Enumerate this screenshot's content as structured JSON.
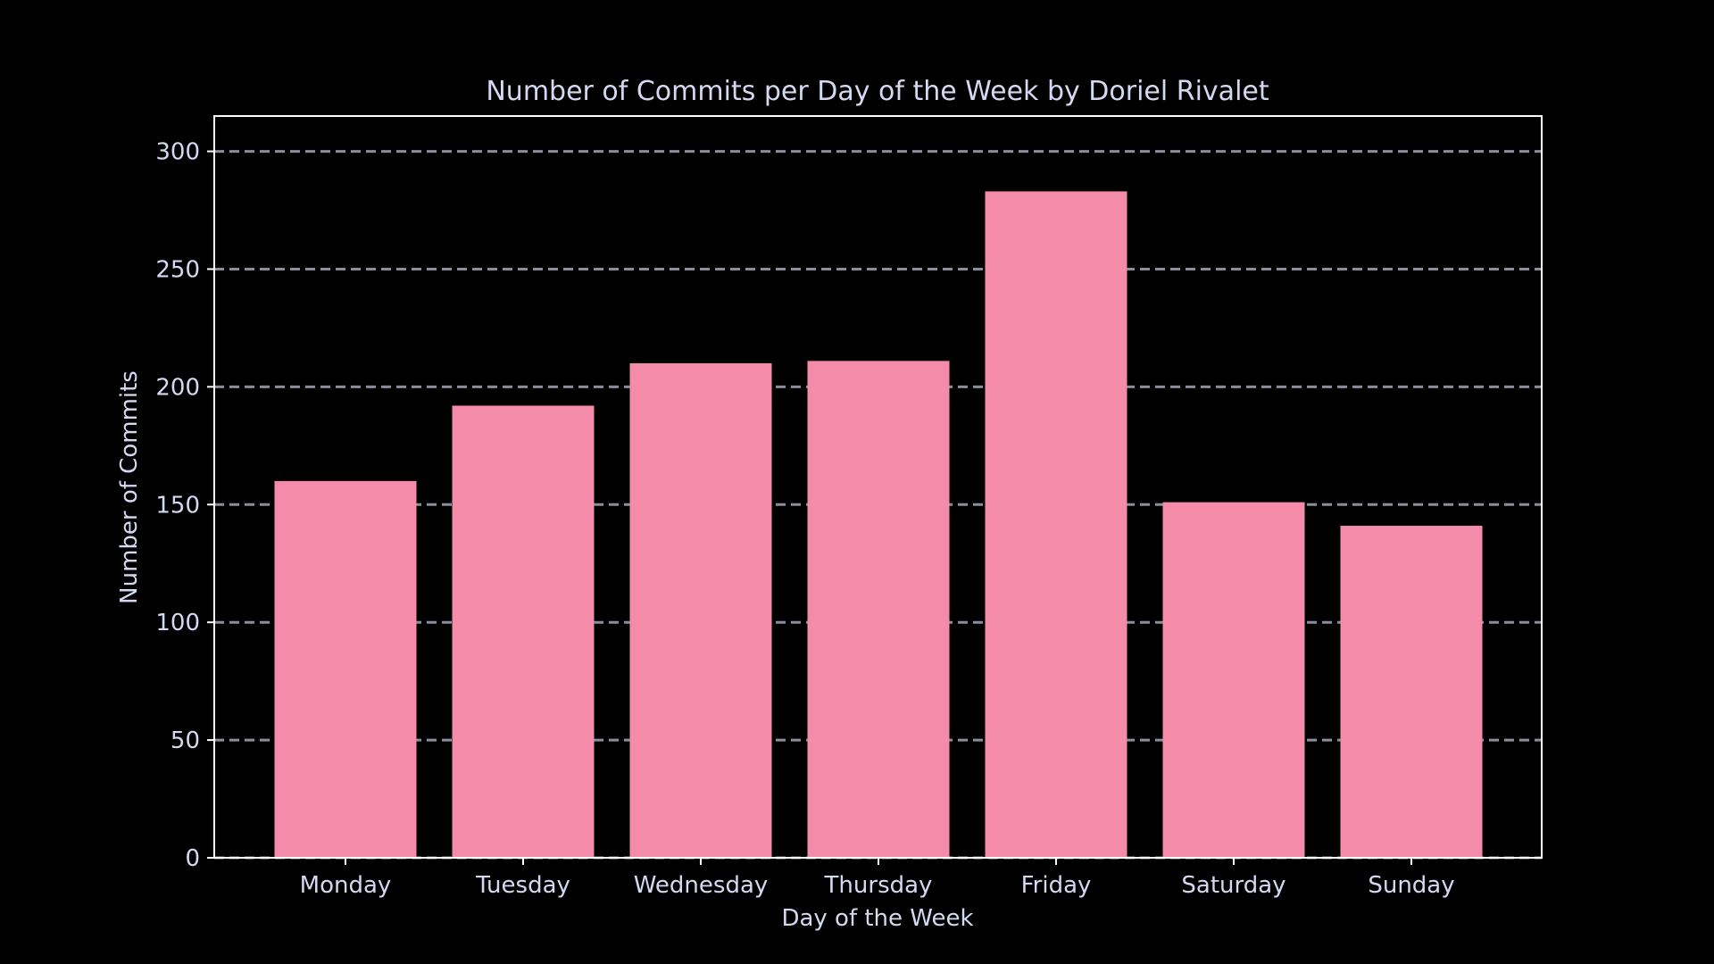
{
  "chart_data": {
    "type": "bar",
    "title": "Number of Commits per Day of the Week by Doriel Rivalet",
    "xlabel": "Day of the Week",
    "ylabel": "Number of Commits",
    "categories": [
      "Monday",
      "Tuesday",
      "Wednesday",
      "Thursday",
      "Friday",
      "Saturday",
      "Sunday"
    ],
    "values": [
      160,
      192,
      210,
      211,
      283,
      151,
      141
    ],
    "ylim": [
      0,
      315
    ],
    "yticks": [
      "0",
      "50",
      "100",
      "150",
      "200",
      "250",
      "300"
    ],
    "grid": true,
    "legend": "none"
  },
  "colors": {
    "background": "#000000",
    "bar": "#f48ba9",
    "text": "#d4d9f2",
    "axes": "#ffffff",
    "grid": "#8a8d9c"
  }
}
